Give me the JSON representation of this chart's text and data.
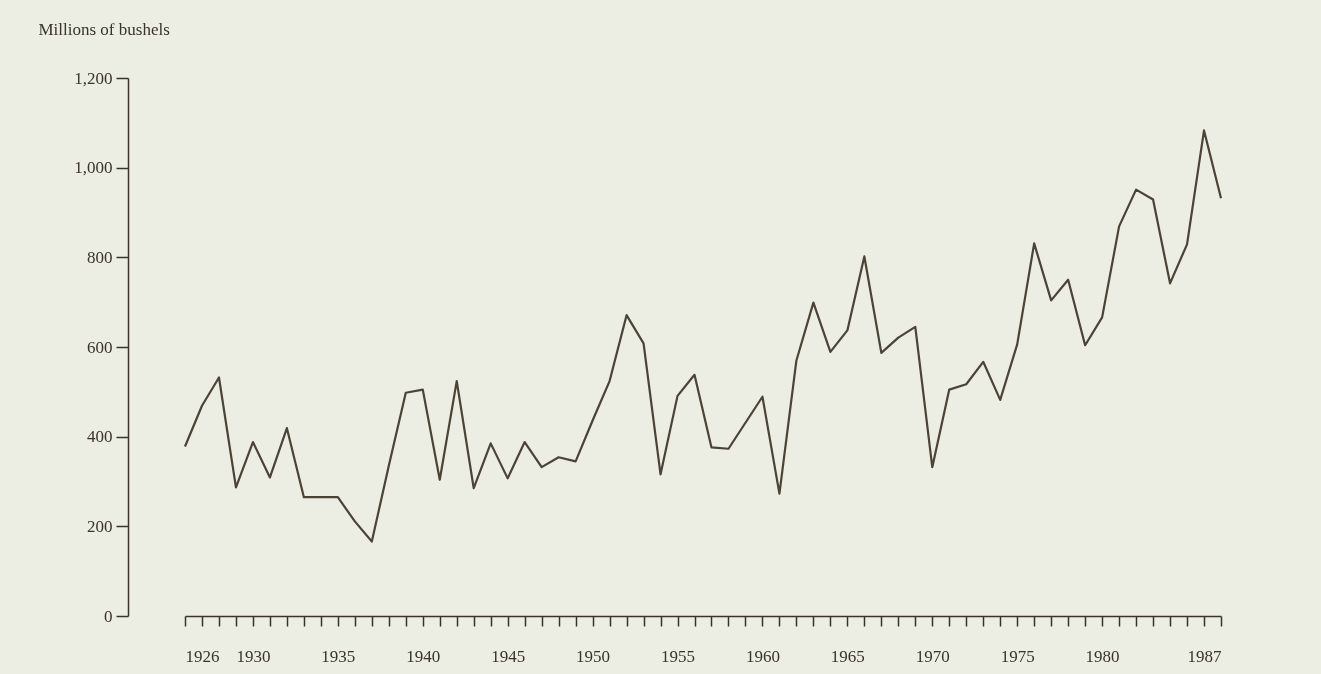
{
  "chart_data": {
    "type": "line",
    "ylabel": "Millions of bushels",
    "x": [
      1926,
      1927,
      1928,
      1929,
      1930,
      1931,
      1932,
      1933,
      1934,
      1935,
      1936,
      1937,
      1938,
      1939,
      1940,
      1941,
      1942,
      1943,
      1944,
      1945,
      1946,
      1947,
      1948,
      1949,
      1950,
      1951,
      1952,
      1953,
      1954,
      1955,
      1956,
      1957,
      1958,
      1959,
      1960,
      1961,
      1962,
      1963,
      1964,
      1965,
      1966,
      1967,
      1968,
      1969,
      1970,
      1971,
      1972,
      1973,
      1974,
      1975,
      1976,
      1977,
      1978,
      1979,
      1980,
      1981,
      1982,
      1983,
      1984,
      1985,
      1986,
      1987
    ],
    "series": [
      {
        "color": "#4a4336",
        "values": [
          378,
          469,
          532,
          287,
          388,
          309,
          419,
          265,
          265,
          265,
          211,
          166,
          335,
          498,
          505,
          304,
          524,
          285,
          385,
          307,
          388,
          332,
          354,
          345,
          436,
          524,
          671,
          608,
          316,
          491,
          538,
          376,
          373,
          431,
          489,
          273,
          570,
          699,
          589,
          637,
          802,
          587,
          621,
          645,
          332,
          505,
          517,
          567,
          482,
          606,
          831,
          704,
          750,
          604,
          666,
          869,
          951,
          929,
          742,
          829,
          1083,
          932
        ]
      }
    ],
    "xlim": [
      1926,
      1987
    ],
    "ylim": [
      0,
      1200
    ],
    "xticks": [
      1926,
      {
        "value": 1927,
        "label": null
      },
      {
        "value": 1928,
        "label": null
      },
      {
        "value": 1929,
        "label": null
      },
      1930,
      {
        "value": 1931,
        "label": null
      },
      {
        "value": 1932,
        "label": null
      },
      {
        "value": 1933,
        "label": null
      },
      {
        "value": 1934,
        "label": null
      },
      1935,
      {
        "value": 1936,
        "label": null
      },
      {
        "value": 1937,
        "label": null
      },
      {
        "value": 1938,
        "label": null
      },
      {
        "value": 1939,
        "label": null
      },
      1940,
      {
        "value": 1941,
        "label": null
      },
      {
        "value": 1942,
        "label": null
      },
      {
        "value": 1943,
        "label": null
      },
      {
        "value": 1944,
        "label": null
      },
      1945,
      {
        "value": 1946,
        "label": null
      },
      {
        "value": 1947,
        "label": null
      },
      {
        "value": 1948,
        "label": null
      },
      {
        "value": 1949,
        "label": null
      },
      1950,
      {
        "value": 1951,
        "label": null
      },
      {
        "value": 1952,
        "label": null
      },
      {
        "value": 1953,
        "label": null
      },
      {
        "value": 1954,
        "label": null
      },
      1955,
      {
        "value": 1956,
        "label": null
      },
      {
        "value": 1957,
        "label": null
      },
      {
        "value": 1958,
        "label": null
      },
      {
        "value": 1959,
        "label": null
      },
      1960,
      {
        "value": 1961,
        "label": null
      },
      {
        "value": 1962,
        "label": null
      },
      {
        "value": 1963,
        "label": null
      },
      {
        "value": 1964,
        "label": null
      },
      1965,
      {
        "value": 1966,
        "label": null
      },
      {
        "value": 1967,
        "label": null
      },
      {
        "value": 1968,
        "label": null
      },
      {
        "value": 1969,
        "label": null
      },
      1970,
      {
        "value": 1971,
        "label": null
      },
      {
        "value": 1972,
        "label": null
      },
      {
        "value": 1973,
        "label": null
      },
      {
        "value": 1974,
        "label": null
      },
      1975,
      {
        "value": 1976,
        "label": null
      },
      {
        "value": 1977,
        "label": null
      },
      {
        "value": 1978,
        "label": null
      },
      {
        "value": 1979,
        "label": null
      },
      1980,
      {
        "value": 1981,
        "label": null
      },
      {
        "value": 1982,
        "label": null
      },
      {
        "value": 1983,
        "label": null
      },
      {
        "value": 1984,
        "label": null
      },
      {
        "value": 1985,
        "label": null
      },
      {
        "value": 1986,
        "label": null
      },
      1987
    ],
    "yticks": [
      0,
      {
        "value": 200,
        "label": "200"
      },
      {
        "value": 400,
        "label": "400"
      },
      {
        "value": 600,
        "label": "600"
      },
      {
        "value": 800,
        "label": "800"
      },
      {
        "value": 1000,
        "label": "1,000"
      },
      {
        "value": 1200,
        "label": "1,200"
      }
    ],
    "grid": false,
    "legend": false,
    "marker": "none",
    "line_style": "solid"
  }
}
